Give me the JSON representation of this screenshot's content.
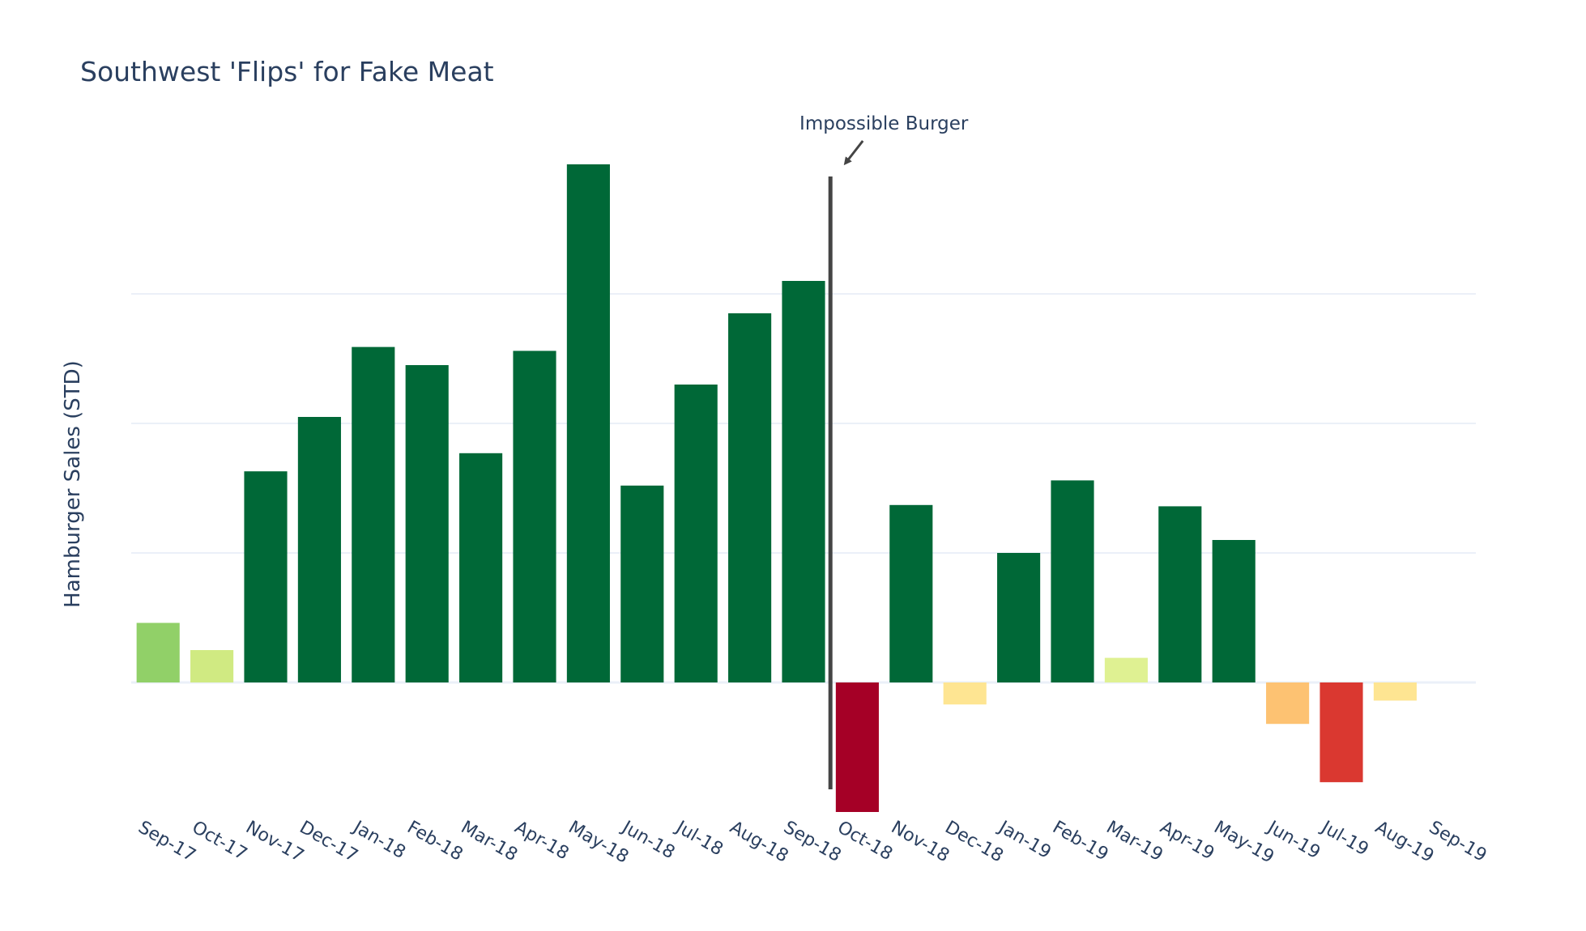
{
  "chart_data": {
    "type": "bar",
    "title": "Southwest 'Flips' for Fake Meat",
    "xlabel": "",
    "ylabel": "Hamburger Sales (STD)",
    "categories": [
      "Sep-17",
      "Oct-17",
      "Nov-17",
      "Dec-17",
      "Jan-18",
      "Feb-18",
      "Mar-18",
      "Apr-18",
      "May-18",
      "Jun-18",
      "Jul-18",
      "Aug-18",
      "Sep-18",
      "Oct-18",
      "Nov-18",
      "Dec-18",
      "Jan-19",
      "Feb-19",
      "Mar-19",
      "Apr-19",
      "May-19",
      "Jun-19",
      "Jul-19",
      "Aug-19",
      "Sep-19"
    ],
    "values": [
      0.46,
      0.25,
      1.63,
      2.05,
      2.59,
      2.45,
      1.77,
      2.56,
      4.0,
      1.52,
      2.3,
      2.85,
      3.1,
      -1.0,
      1.37,
      -0.17,
      1.0,
      1.56,
      0.19,
      1.36,
      1.1,
      -0.32,
      -0.77,
      -0.14,
      0
    ],
    "colors": [
      "#91d068",
      "#d0ea82",
      "#006837",
      "#006837",
      "#006837",
      "#006837",
      "#006837",
      "#006837",
      "#006837",
      "#006837",
      "#006837",
      "#006837",
      "#006837",
      "#a50026",
      "#006837",
      "#fee592",
      "#006837",
      "#006837",
      "#dff192",
      "#006837",
      "#006837",
      "#fdc272",
      "#da3830",
      "#fee592",
      "#ffffff"
    ],
    "ylim": [
      -1.08,
      4.25
    ],
    "gridlines": [
      1,
      2,
      3
    ],
    "grid": true,
    "show_y_tick_labels": false,
    "annotations": [
      {
        "text": "Impossible Burger",
        "x_after_category": "Sep-18",
        "arrow": true
      }
    ],
    "vertical_marker": {
      "after_category": "Sep-18",
      "color": "#444444"
    }
  }
}
